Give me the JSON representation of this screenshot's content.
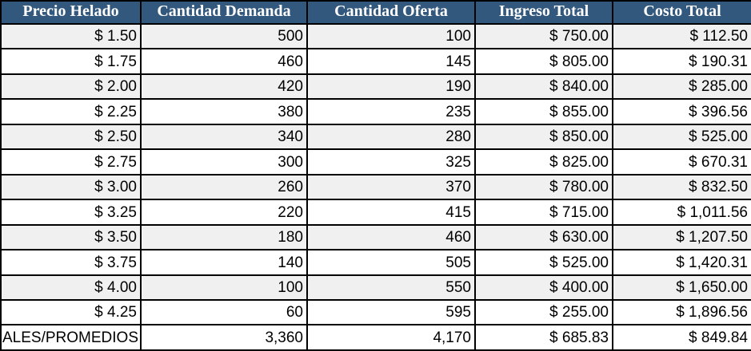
{
  "chart_data": {
    "type": "table",
    "title": "",
    "columns": [
      "Precio Helado",
      "Cantidad Demanda",
      "Cantidad Oferta",
      "Ingreso Total",
      "Costo Total"
    ],
    "rows": [
      [
        1.5,
        500,
        100,
        750.0,
        112.5
      ],
      [
        1.75,
        460,
        145,
        805.0,
        190.31
      ],
      [
        2.0,
        420,
        190,
        840.0,
        285.0
      ],
      [
        2.25,
        380,
        235,
        855.0,
        396.56
      ],
      [
        2.5,
        340,
        280,
        850.0,
        525.0
      ],
      [
        2.75,
        300,
        325,
        825.0,
        670.31
      ],
      [
        3.0,
        260,
        370,
        780.0,
        832.5
      ],
      [
        3.25,
        220,
        415,
        715.0,
        1011.56
      ],
      [
        3.5,
        180,
        460,
        630.0,
        1207.5
      ],
      [
        3.75,
        140,
        505,
        525.0,
        1420.31
      ],
      [
        4.0,
        100,
        550,
        400.0,
        1650.0
      ],
      [
        4.25,
        60,
        595,
        255.0,
        1896.56
      ]
    ],
    "totals_row_label": "ALES/PROMEDIOS",
    "totals": [
      3360,
      4170,
      685.83,
      849.84
    ]
  },
  "table": {
    "columns": [
      "Precio Helado",
      "Cantidad Demanda",
      "Cantidad Oferta",
      "Ingreso Total",
      "Costo Total"
    ],
    "rows": [
      [
        "$ 1.50",
        "500",
        "100",
        "$ 750.00",
        "$ 112.50"
      ],
      [
        "$ 1.75",
        "460",
        "145",
        "$ 805.00",
        "$ 190.31"
      ],
      [
        "$ 2.00",
        "420",
        "190",
        "$ 840.00",
        "$ 285.00"
      ],
      [
        "$ 2.25",
        "380",
        "235",
        "$ 855.00",
        "$ 396.56"
      ],
      [
        "$ 2.50",
        "340",
        "280",
        "$ 850.00",
        "$ 525.00"
      ],
      [
        "$ 2.75",
        "300",
        "325",
        "$ 825.00",
        "$ 670.31"
      ],
      [
        "$ 3.00",
        "260",
        "370",
        "$ 780.00",
        "$ 832.50"
      ],
      [
        "$ 3.25",
        "220",
        "415",
        "$ 715.00",
        "$ 1,011.56"
      ],
      [
        "$ 3.50",
        "180",
        "460",
        "$ 630.00",
        "$ 1,207.50"
      ],
      [
        "$ 3.75",
        "140",
        "505",
        "$ 525.00",
        "$ 1,420.31"
      ],
      [
        "$ 4.00",
        "100",
        "550",
        "$ 400.00",
        "$ 1,650.00"
      ],
      [
        "$ 4.25",
        "60",
        "595",
        "$ 255.00",
        "$ 1,896.56"
      ]
    ],
    "totals_row": [
      "ALES/PROMEDIOS",
      "3,360",
      "4,170",
      "$ 685.83",
      "$ 849.84"
    ]
  },
  "colors": {
    "header_bg": "#33587E",
    "header_text": "#FFFFFF",
    "row_shade": "#F0F0F0",
    "row_plain": "#FFFFFF",
    "border": "#000000",
    "cell_text": "#000000"
  }
}
